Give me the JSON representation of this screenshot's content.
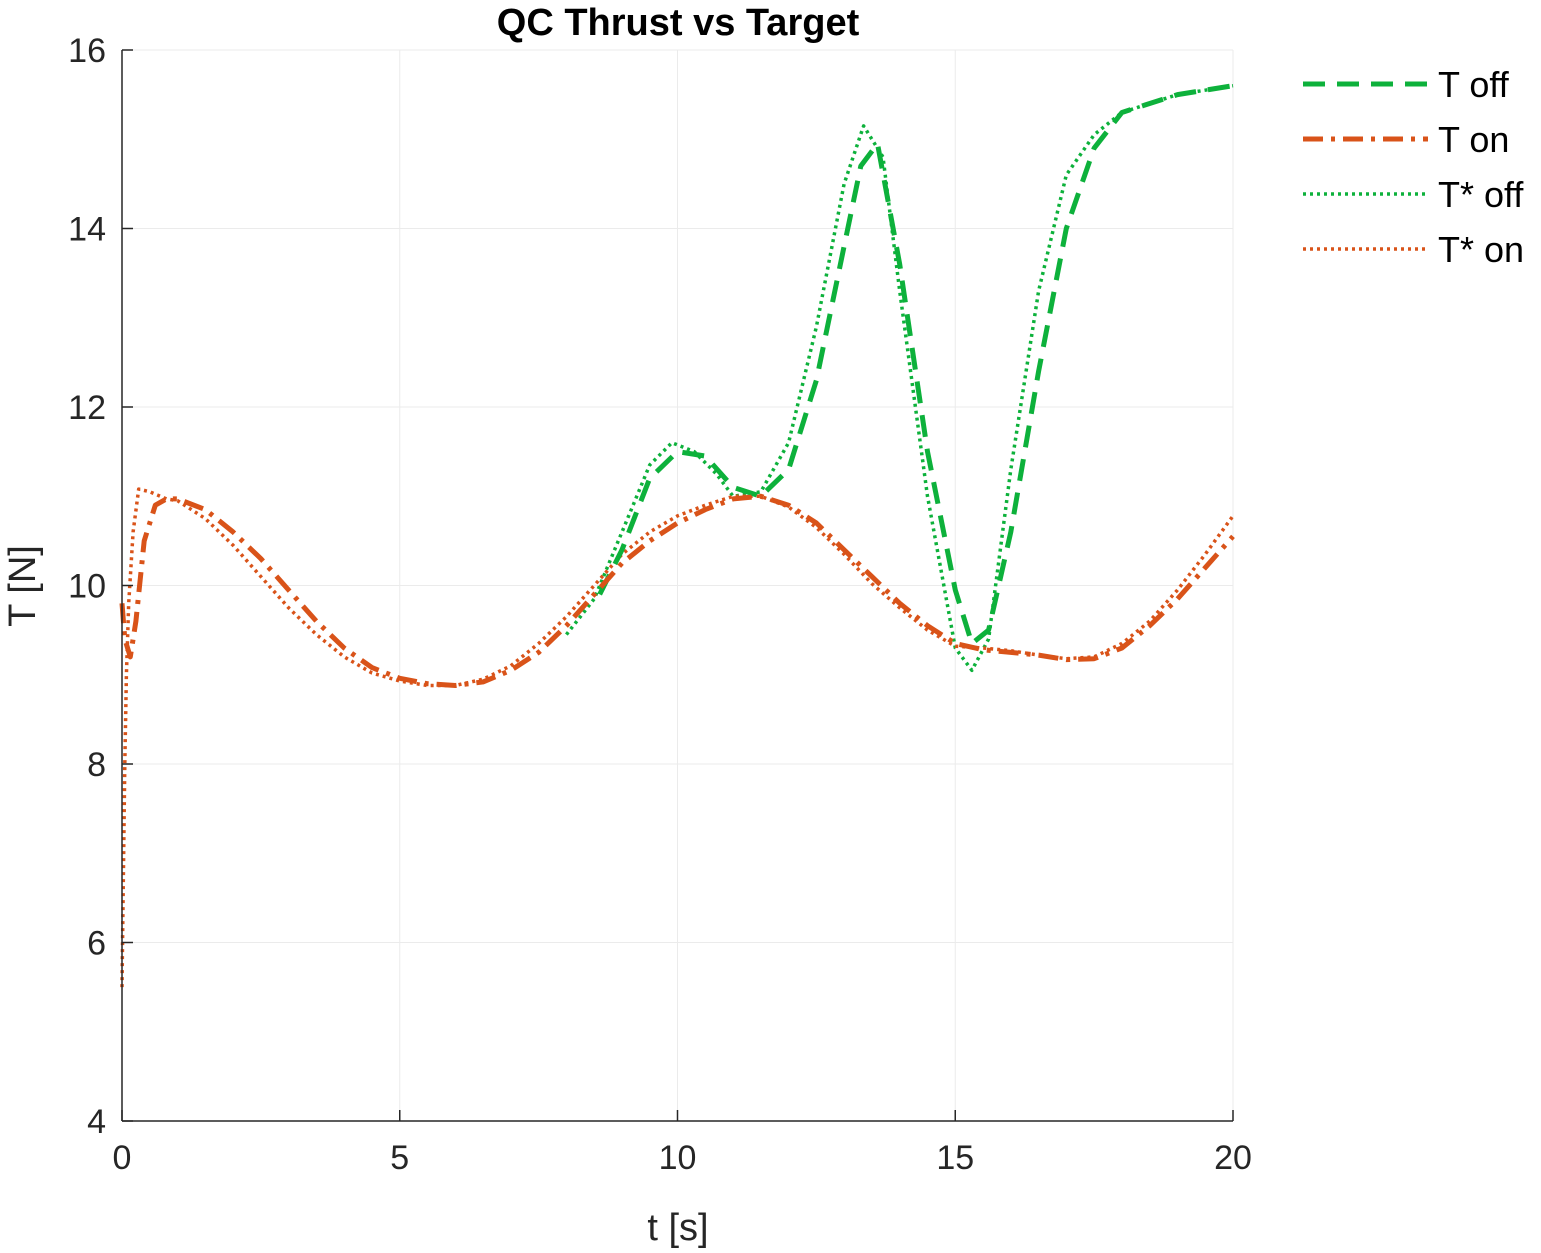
{
  "chart_data": {
    "type": "line",
    "title": "QC Thrust vs Target",
    "xlabel": "t [s]",
    "ylabel": "T [N]",
    "xlim": [
      0,
      20
    ],
    "ylim": [
      4,
      16
    ],
    "xticks": [
      0,
      5,
      10,
      15,
      20
    ],
    "yticks": [
      4,
      6,
      8,
      10,
      12,
      14,
      16
    ],
    "grid": true,
    "legend_position": "outside-top-right",
    "series": [
      {
        "name": "T off",
        "color": "#0db13b",
        "dash": "dashed",
        "x": [
          8.6,
          9.0,
          9.5,
          10.0,
          10.5,
          11.0,
          11.5,
          12.0,
          12.5,
          13.0,
          13.3,
          13.6,
          14.0,
          14.5,
          15.0,
          15.3,
          15.6,
          16.0,
          16.5,
          17.0,
          17.5,
          18.0,
          18.5,
          19.0,
          19.5,
          20.0
        ],
        "y": [
          9.9,
          10.4,
          11.2,
          11.5,
          11.45,
          11.1,
          11.0,
          11.3,
          12.3,
          13.8,
          14.7,
          14.95,
          13.6,
          11.5,
          9.95,
          9.35,
          9.5,
          10.6,
          12.4,
          14.0,
          14.9,
          15.3,
          15.4,
          15.5,
          15.55,
          15.6
        ]
      },
      {
        "name": "T on",
        "color": "#d95319",
        "dash": "dashdot",
        "x": [
          0.0,
          0.05,
          0.15,
          0.25,
          0.4,
          0.6,
          0.8,
          1.0,
          1.5,
          2.0,
          2.5,
          3.0,
          3.5,
          4.0,
          4.5,
          5.0,
          5.5,
          6.0,
          6.5,
          7.0,
          7.5,
          8.0,
          8.5,
          9.0,
          9.5,
          10.0,
          10.5,
          11.0,
          11.5,
          12.0,
          12.5,
          13.0,
          13.5,
          14.0,
          14.5,
          15.0,
          15.5,
          16.0,
          16.5,
          17.0,
          17.5,
          18.0,
          18.5,
          19.0,
          19.5,
          20.0
        ],
        "y": [
          9.8,
          9.4,
          9.2,
          9.6,
          10.5,
          10.9,
          10.97,
          10.97,
          10.85,
          10.6,
          10.3,
          9.95,
          9.6,
          9.3,
          9.08,
          8.96,
          8.9,
          8.88,
          8.92,
          9.05,
          9.25,
          9.55,
          9.9,
          10.25,
          10.5,
          10.7,
          10.85,
          10.97,
          11.0,
          10.9,
          10.7,
          10.4,
          10.1,
          9.8,
          9.55,
          9.35,
          9.28,
          9.25,
          9.22,
          9.17,
          9.18,
          9.3,
          9.55,
          9.85,
          10.2,
          10.55
        ]
      },
      {
        "name": "T* off",
        "color": "#0db13b",
        "dash": "dotted",
        "x": [
          8.0,
          8.5,
          9.0,
          9.5,
          9.9,
          10.3,
          10.7,
          11.0,
          11.5,
          12.0,
          12.5,
          13.0,
          13.35,
          13.7,
          14.0,
          14.5,
          15.0,
          15.3,
          15.6,
          16.0,
          16.5,
          17.0,
          17.5,
          18.0,
          18.5,
          19.0,
          19.5,
          20.0
        ],
        "y": [
          9.45,
          9.85,
          10.6,
          11.35,
          11.6,
          11.5,
          11.25,
          11.0,
          11.05,
          11.6,
          12.9,
          14.5,
          15.15,
          14.8,
          13.3,
          11.0,
          9.3,
          9.05,
          9.4,
          11.3,
          13.3,
          14.6,
          15.05,
          15.3,
          15.4,
          15.5,
          15.55,
          15.6
        ]
      },
      {
        "name": "T* on",
        "color": "#d95319",
        "dash": "dotted",
        "x": [
          0.0,
          0.02,
          0.05,
          0.08,
          0.12,
          0.2,
          0.3,
          0.5,
          0.8,
          1.0,
          1.5,
          2.0,
          2.5,
          3.0,
          3.5,
          4.0,
          4.5,
          5.0,
          5.5,
          6.0,
          6.5,
          7.0,
          7.5,
          8.0,
          8.5,
          9.0,
          9.5,
          10.0,
          10.5,
          11.0,
          11.5,
          12.0,
          12.5,
          13.0,
          13.5,
          14.0,
          14.5,
          15.0,
          15.5,
          16.0,
          16.5,
          17.0,
          17.5,
          18.0,
          18.5,
          19.0,
          19.5,
          20.0
        ],
        "y": [
          5.5,
          6.5,
          8.0,
          9.0,
          9.8,
          10.6,
          11.08,
          11.05,
          10.97,
          10.95,
          10.75,
          10.45,
          10.1,
          9.75,
          9.45,
          9.2,
          9.02,
          8.93,
          8.88,
          8.88,
          8.95,
          9.1,
          9.35,
          9.65,
          10.0,
          10.35,
          10.6,
          10.78,
          10.9,
          11.0,
          11.0,
          10.88,
          10.65,
          10.35,
          10.02,
          9.75,
          9.5,
          9.32,
          9.3,
          9.27,
          9.22,
          9.18,
          9.2,
          9.35,
          9.6,
          9.95,
          10.35,
          10.78
        ]
      }
    ]
  }
}
